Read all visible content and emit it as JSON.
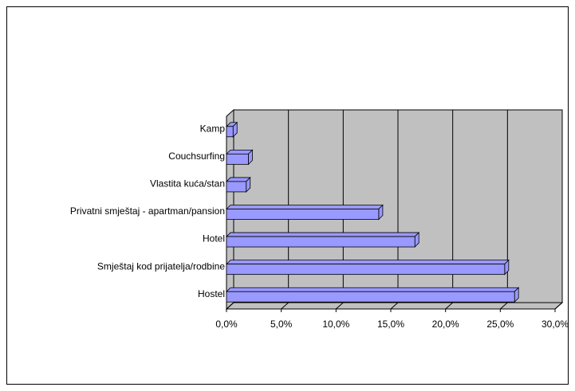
{
  "chart_data": {
    "type": "bar3d_horizontal",
    "categories": [
      "Hostel",
      "Smještaj kod prijatelja/rodbine",
      "Hotel",
      "Privatni smještaj - apartman/pansion",
      "Vlastita kuća/stan",
      "Couchsurfing",
      "Kamp"
    ],
    "values": [
      26.3,
      25.4,
      17.2,
      13.9,
      1.8,
      2.0,
      0.6
    ],
    "color": "#9999ff",
    "wall_color": "#c0c0c0",
    "xlim": [
      0,
      30
    ],
    "xticks": [
      {
        "value": 0,
        "label": "0,0%"
      },
      {
        "value": 5,
        "label": "5,0%"
      },
      {
        "value": 10,
        "label": "10,0%"
      },
      {
        "value": 15,
        "label": "15,0%"
      },
      {
        "value": 20,
        "label": "20,0%"
      },
      {
        "value": 25,
        "label": "25,0%"
      },
      {
        "value": 30,
        "label": "30,0%"
      }
    ],
    "grid": true
  }
}
